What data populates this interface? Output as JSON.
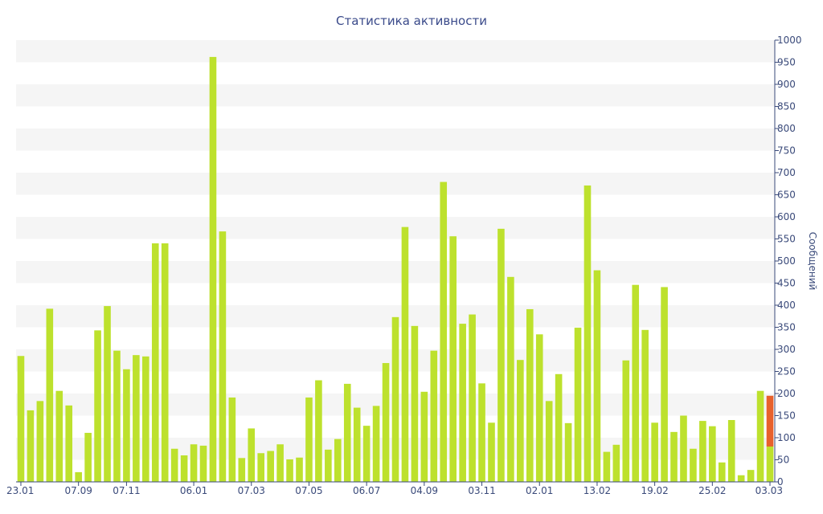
{
  "chart_data": {
    "type": "bar",
    "title": "Статистика активности",
    "ylabel": "Сообщений",
    "xlabel": "",
    "ylim": [
      0,
      1000
    ],
    "y_ticks": [
      0,
      50,
      100,
      150,
      200,
      250,
      300,
      350,
      400,
      450,
      500,
      550,
      600,
      650,
      700,
      750,
      800,
      850,
      900,
      950,
      1000
    ],
    "y_axis_side": "right",
    "grid": "alternating horizontal bands",
    "x_tick_labels": [
      {
        "label": "23.01",
        "index": 0
      },
      {
        "label": "07.09",
        "index": 6
      },
      {
        "label": "07.11",
        "index": 11
      },
      {
        "label": "06.01",
        "index": 18
      },
      {
        "label": "07.03",
        "index": 24
      },
      {
        "label": "07.05",
        "index": 30
      },
      {
        "label": "06.07",
        "index": 36
      },
      {
        "label": "04.09",
        "index": 42
      },
      {
        "label": "03.11",
        "index": 48
      },
      {
        "label": "02.01",
        "index": 54
      },
      {
        "label": "13.02",
        "index": 60
      },
      {
        "label": "19.02",
        "index": 66
      },
      {
        "label": "25.02",
        "index": 72
      },
      {
        "label": "03.03",
        "index": 78
      }
    ],
    "colors": {
      "bar": "#bde12d",
      "highlight": "#e8612c",
      "band": "#f5f5f5",
      "axis": "#3a4a7a",
      "title": "#3a4a8a"
    },
    "series": [
      {
        "values": [
          285,
          162,
          183,
          392,
          206,
          173,
          22,
          111,
          343,
          398,
          297,
          255,
          287,
          284,
          540,
          540,
          75,
          60,
          85,
          82,
          962,
          567,
          191,
          54,
          121,
          65,
          70,
          85,
          51,
          55,
          191,
          230,
          73,
          97,
          222,
          168,
          127,
          172,
          269,
          373,
          577,
          353,
          204,
          297,
          679,
          556,
          358,
          379,
          223,
          134,
          573,
          464,
          276,
          391,
          334,
          183,
          244,
          133,
          349,
          671,
          479,
          68,
          84,
          275,
          446,
          344,
          134,
          441,
          113,
          150,
          75,
          138,
          126,
          44,
          140,
          15,
          27,
          206,
          80
        ]
      },
      {
        "stacked_on_last_bar": 115
      }
    ]
  }
}
